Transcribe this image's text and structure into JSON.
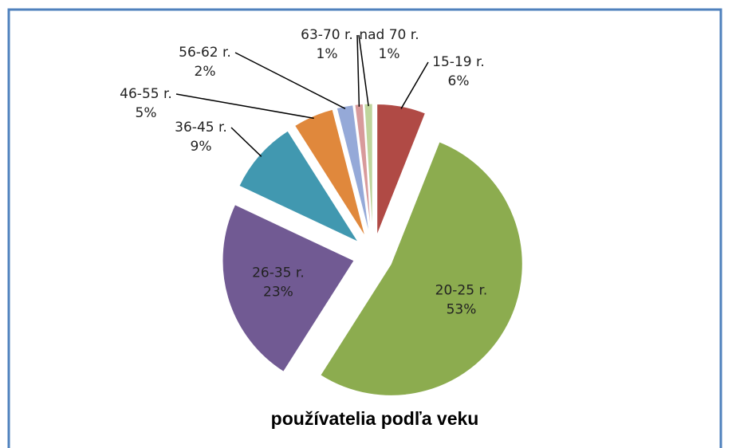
{
  "chart_data": {
    "type": "pie",
    "title": "používatelia podľa veku",
    "categories": [
      "15-19 r.",
      "20-25 r.",
      "26-35 r.",
      "36-45 r.",
      "46-55 r.",
      "56-62 r.",
      "63-70 r.",
      "nad 70 r."
    ],
    "values": [
      6,
      53,
      23,
      9,
      5,
      2,
      1,
      1
    ],
    "value_labels": [
      "6%",
      "53%",
      "23%",
      "9%",
      "5%",
      "2%",
      "1%",
      "1%"
    ],
    "colors": [
      "#b04a45",
      "#8cac4f",
      "#715a93",
      "#4198b0",
      "#e0883c",
      "#95a9d8",
      "#d89a9b",
      "#bfd59c"
    ]
  }
}
